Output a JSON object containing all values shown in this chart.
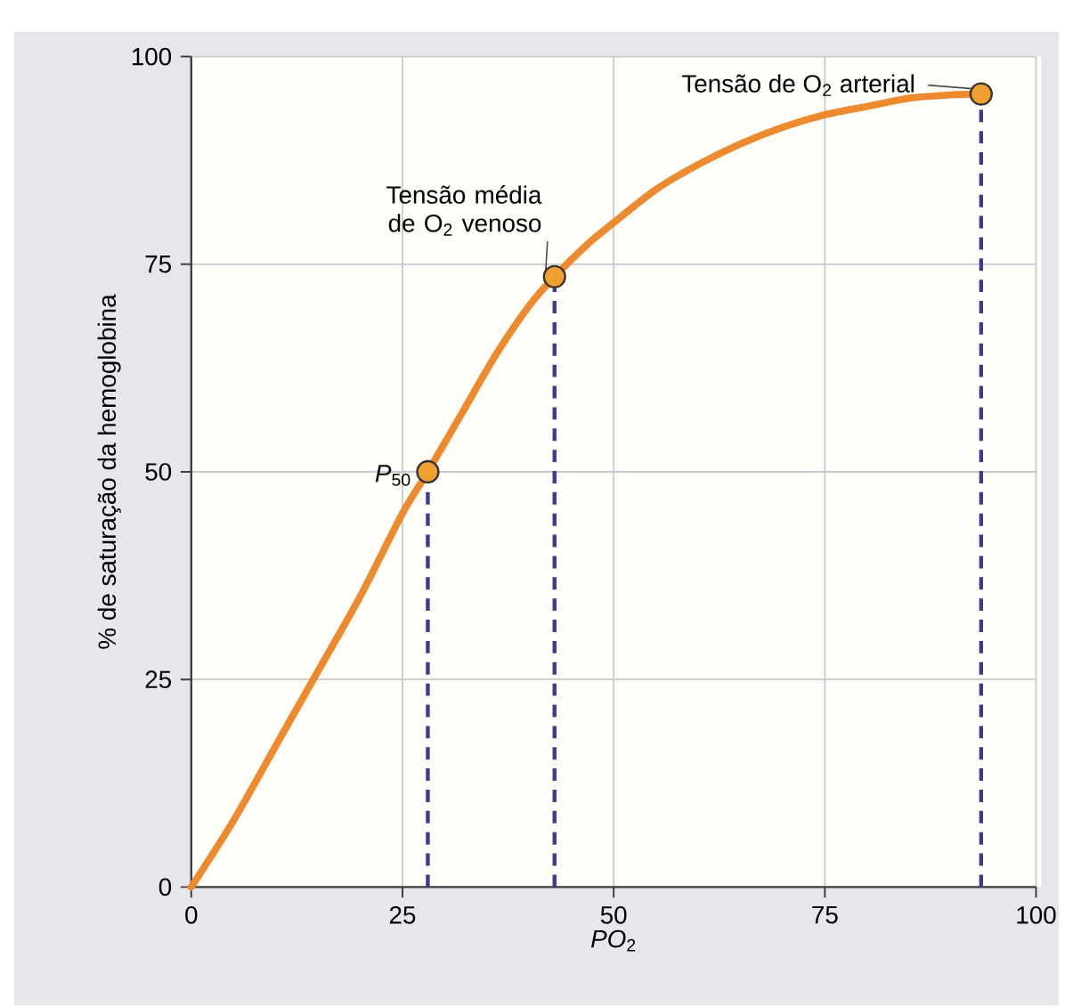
{
  "chart_data": {
    "type": "line",
    "xlabel": "*PO*$_{2}$",
    "ylabel": "% de saturação da hemoglobina",
    "xlim": [
      0,
      100
    ],
    "ylim": [
      0,
      100
    ],
    "xticks": [
      0,
      25,
      50,
      75,
      100
    ],
    "yticks": [
      0,
      25,
      50,
      75,
      100
    ],
    "grid": true,
    "series": [
      {
        "color": "#ee8a2e",
        "marker": "none",
        "x": [
          0,
          5,
          10,
          15,
          20,
          25,
          28,
          32,
          36,
          40,
          43,
          47,
          50,
          55,
          60,
          65,
          70,
          75,
          80,
          85,
          90,
          93.5
        ],
        "values": [
          0,
          8,
          17,
          26,
          35,
          45,
          50,
          57,
          64,
          70,
          73.5,
          77.5,
          80,
          84,
          87,
          89.5,
          91.5,
          93,
          94,
          95,
          95.4,
          95.5
        ]
      },
      {
        "type": "scatter",
        "color": "#f0a030",
        "marker": "circle",
        "x": [
          28,
          43,
          93.5
        ],
        "values": [
          50,
          73.5,
          95.5
        ]
      }
    ],
    "ref_lines": [
      {
        "axis": "x",
        "value": 28,
        "color": "#3d3b8e",
        "line_style": "dashed"
      },
      {
        "axis": "x",
        "value": 43,
        "color": "#3d3b8e",
        "line_style": "dashed"
      },
      {
        "axis": "x",
        "value": 93.5,
        "color": "#3d3b8e",
        "line_style": "dashed"
      }
    ],
    "annotations": [
      {
        "text": "*P*$_{50}$",
        "x": 28,
        "y": 50
      },
      {
        "text": "Tensão média de O$_{2}$ venoso",
        "x": 43,
        "y": 73.5
      },
      {
        "text": "Tensão de O$_{2}$ arterial",
        "x": 93.5,
        "y": 95.5
      }
    ]
  }
}
